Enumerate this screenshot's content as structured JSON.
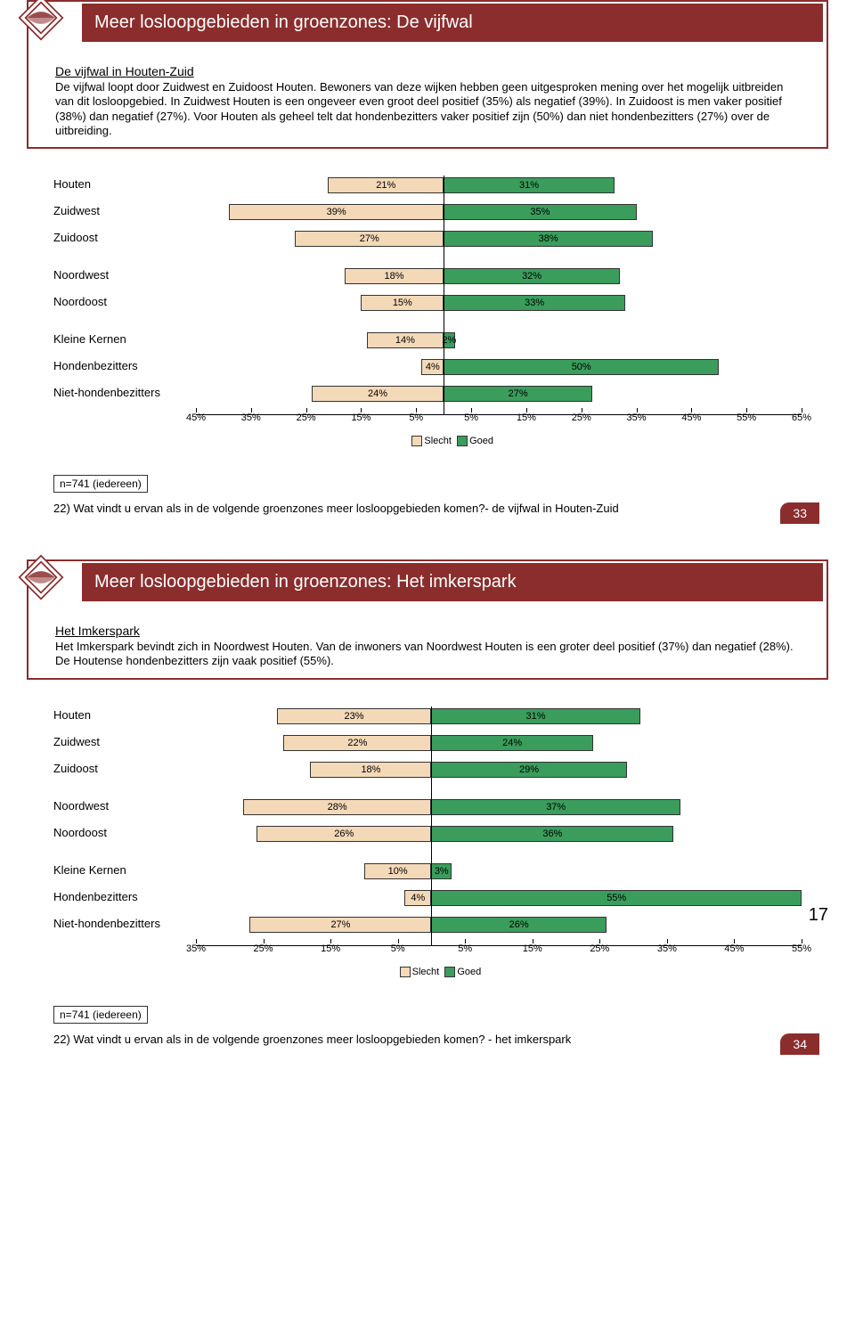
{
  "page_number": "17",
  "colors": {
    "primary": "#8b2d2d",
    "slecht_fill": "#f4d9b8",
    "goed_fill": "#3a9d5c",
    "border": "#333333"
  },
  "slides": [
    {
      "title": "Meer losloopgebieden in groenzones: De vijfwal",
      "subtitle": "De vijfwal in Houten-Zuid",
      "description": "De vijfwal loopt door Zuidwest en Zuidoost Houten. Bewoners van deze wijken hebben geen uitgesproken mening over het mogelijk uitbreiden van dit losloopgebied. In Zuidwest Houten is een ongeveer even groot deel positief (35%) als negatief (39%). In Zuidoost is men vaker positief (38%) dan negatief (27%). Voor Houten als geheel telt dat hondenbezitters vaker positief zijn (50%) dan niet hondenbezitters (27%) over de uitbreiding.",
      "sample_label": "n=741 (iedereen)",
      "question": "22) Wat vindt u ervan als in de volgende groenzones meer losloopgebieden komen?- de vijfwal in Houten-Zuid",
      "slide_number": "33",
      "legend": {
        "slecht": "Slecht",
        "goed": "Goed"
      },
      "axis": {
        "min": -45,
        "max": 65,
        "step": 10,
        "ticks_left": [
          45,
          35,
          25,
          15,
          5
        ],
        "ticks_right": [
          5,
          15,
          25,
          35,
          45,
          55,
          65
        ]
      },
      "groups": [
        [
          {
            "label": "Houten",
            "slecht": 21,
            "goed": 31
          },
          {
            "label": "Zuidwest",
            "slecht": 39,
            "goed": 35
          },
          {
            "label": "Zuidoost",
            "slecht": 27,
            "goed": 38
          }
        ],
        [
          {
            "label": "Noordwest",
            "slecht": 18,
            "goed": 32
          },
          {
            "label": "Noordoost",
            "slecht": 15,
            "goed": 33
          }
        ],
        [
          {
            "label": "Kleine Kernen",
            "slecht": 14,
            "goed": 2
          },
          {
            "label": "Hondenbezitters",
            "slecht": 4,
            "goed": 50
          },
          {
            "label": "Niet-hondenbezitters",
            "slecht": 24,
            "goed": 27
          }
        ]
      ]
    },
    {
      "title": "Meer losloopgebieden in groenzones: Het imkerspark",
      "subtitle": "Het Imkerspark",
      "description": "Het Imkerspark bevindt zich in Noordwest Houten. Van de inwoners van Noordwest Houten is een groter deel positief (37%) dan negatief (28%). De Houtense hondenbezitters zijn vaak positief (55%).",
      "sample_label": "n=741 (iedereen)",
      "question": "22) Wat vindt u ervan als in de volgende groenzones meer losloopgebieden komen? - het imkerspark",
      "slide_number": "34",
      "legend": {
        "slecht": "Slecht",
        "goed": "Goed"
      },
      "axis": {
        "min": -35,
        "max": 55,
        "step": 10,
        "ticks_left": [
          35,
          25,
          15,
          5
        ],
        "ticks_right": [
          5,
          15,
          25,
          35,
          45,
          55
        ]
      },
      "groups": [
        [
          {
            "label": "Houten",
            "slecht": 23,
            "goed": 31
          },
          {
            "label": "Zuidwest",
            "slecht": 22,
            "goed": 24
          },
          {
            "label": "Zuidoost",
            "slecht": 18,
            "goed": 29
          }
        ],
        [
          {
            "label": "Noordwest",
            "slecht": 28,
            "goed": 37
          },
          {
            "label": "Noordoost",
            "slecht": 26,
            "goed": 36
          }
        ],
        [
          {
            "label": "Kleine Kernen",
            "slecht": 10,
            "goed": 3
          },
          {
            "label": "Hondenbezitters",
            "slecht": 4,
            "goed": 55
          },
          {
            "label": "Niet-hondenbezitters",
            "slecht": 27,
            "goed": 26
          }
        ]
      ]
    }
  ]
}
